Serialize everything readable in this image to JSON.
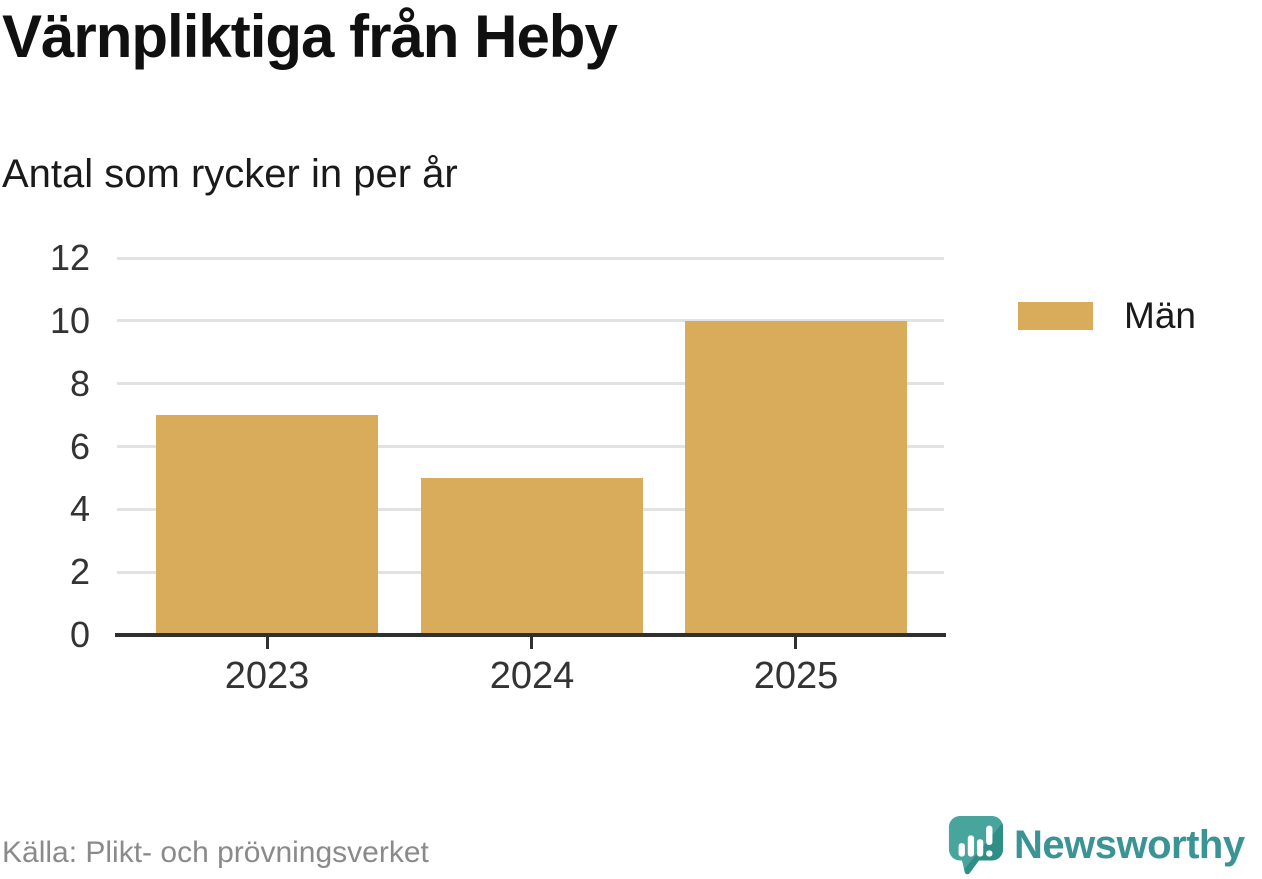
{
  "chart_data": {
    "type": "bar",
    "title": "Värnpliktiga från Heby",
    "subtitle": "Antal som rycker in per år",
    "categories": [
      "2023",
      "2024",
      "2025"
    ],
    "series": [
      {
        "name": "Män",
        "color": "#D9AC5C",
        "values": [
          7,
          5,
          10
        ]
      }
    ],
    "xlabel": "",
    "ylabel": "",
    "ylim": [
      0,
      12
    ],
    "yticks": [
      0,
      2,
      4,
      6,
      8,
      10,
      12
    ],
    "grid": true,
    "legend_position": "right"
  },
  "legend": {
    "items": [
      {
        "label": "Män",
        "color": "#D9AC5C"
      }
    ]
  },
  "footer": {
    "source": "Källa: Plikt- och prövningsverket",
    "brand": "Newsworthy"
  },
  "colors": {
    "bar": "#D9AC5C",
    "grid": "#E2E2E2",
    "axis": "#303030",
    "tick_label": "#333333",
    "title": "#101010",
    "source_text": "#8A8A8A",
    "brand_teal": "#3A9394",
    "logo_teal": "#48A59D",
    "logo_teal_dark": "#2F8E86"
  }
}
